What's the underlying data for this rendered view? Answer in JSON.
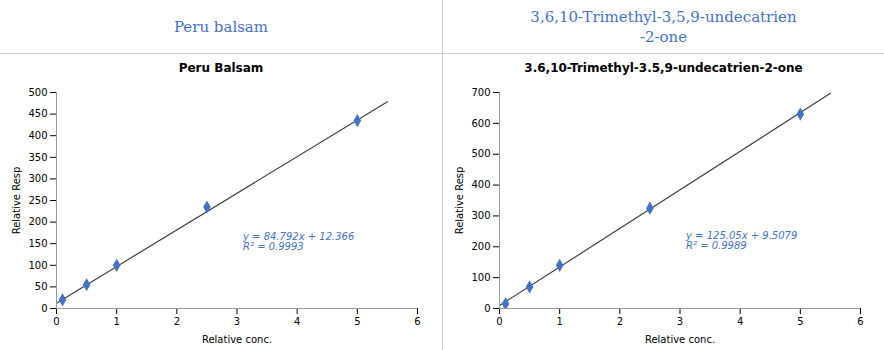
{
  "chart_data": [
    {
      "type": "scatter",
      "header": {
        "lines": [
          "Peru balsam"
        ],
        "color": "#4472C4"
      },
      "title": "Peru Balsam",
      "x": [
        0.1,
        0.5,
        1.0,
        2.5,
        5.0
      ],
      "values": [
        20,
        55,
        100,
        235,
        435
      ],
      "color": "#4472C4",
      "marker": "diamond",
      "trendline": {
        "x": [
          0,
          5.5
        ],
        "values": [
          12.366,
          478.722
        ],
        "color": "#404040"
      },
      "annotations": [
        {
          "x": 3.1,
          "y": 155,
          "lines": [
            "y = 84.792x + 12.366",
            "R² = 0.9993"
          ],
          "color": "#4472C4"
        }
      ],
      "xlabel": "Relative conc.",
      "ylabel": "Relative Resp",
      "xlim": [
        0,
        6
      ],
      "ylim": [
        0,
        500
      ],
      "xticks": [
        0,
        1,
        2,
        3,
        4,
        5,
        6
      ],
      "yticks": [
        0,
        50,
        100,
        150,
        200,
        250,
        300,
        350,
        400,
        450,
        500
      ],
      "grid": false
    },
    {
      "type": "scatter",
      "header": {
        "lines": [
          "3,6,10-Trimethyl-3,5,9-undecatrien",
          "-2-one"
        ],
        "color": "#4472C4"
      },
      "title": "3.6,10-Trimethyl-3.5,9-undecatrien-2-one",
      "x": [
        0.1,
        0.5,
        1.0,
        2.5,
        5.0
      ],
      "values": [
        15,
        70,
        140,
        325,
        630
      ],
      "color": "#4472C4",
      "marker": "diamond",
      "trendline": {
        "x": [
          0,
          5.5
        ],
        "values": [
          9.5079,
          697.2829
        ],
        "color": "#404040"
      },
      "annotations": [
        {
          "x": 3.1,
          "y": 220,
          "lines": [
            "y = 125.05x + 9.5079",
            "R² = 0.9989"
          ],
          "color": "#4472C4"
        }
      ],
      "xlabel": "Relative conc.",
      "ylabel": "Relative Resp",
      "xlim": [
        0,
        6
      ],
      "ylim": [
        0,
        700
      ],
      "xticks": [
        0,
        1,
        2,
        3,
        4,
        5,
        6
      ],
      "yticks": [
        0,
        100,
        200,
        300,
        400,
        500,
        600,
        700
      ],
      "grid": false
    }
  ]
}
